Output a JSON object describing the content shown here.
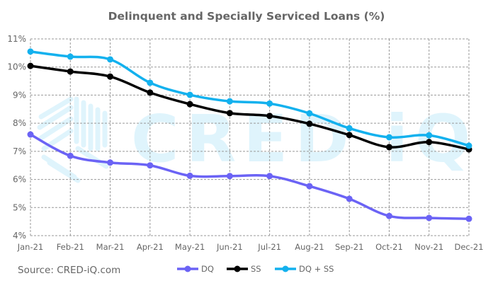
{
  "chart_data": {
    "type": "line",
    "title": "Delinquent and Specially Serviced Loans (%)",
    "xlabel": "",
    "ylabel": "",
    "ylim": [
      4,
      11
    ],
    "yticks": [
      "4%",
      "5%",
      "6%",
      "7%",
      "8%",
      "9%",
      "10%",
      "11%"
    ],
    "ytick_values": [
      4,
      5,
      6,
      7,
      8,
      9,
      10,
      11
    ],
    "grid": true,
    "legend_position": "bottom",
    "categories": [
      "Jan-21",
      "Feb-21",
      "Mar-21",
      "Apr-21",
      "May-21",
      "Jun-21",
      "Jul-21",
      "Aug-21",
      "Sep-21",
      "Oct-21",
      "Nov-21",
      "Dec-21"
    ],
    "series": [
      {
        "name": "DQ",
        "color": "#6b63f5",
        "values": [
          7.6,
          6.84,
          6.6,
          6.5,
          6.13,
          6.12,
          6.12,
          5.76,
          5.31,
          4.7,
          4.63,
          4.6
        ]
      },
      {
        "name": "SS",
        "color": "#000000",
        "values": [
          10.04,
          9.84,
          9.66,
          9.09,
          8.68,
          8.36,
          8.26,
          7.98,
          7.58,
          7.15,
          7.33,
          7.07
        ]
      },
      {
        "name": "DQ + SS",
        "color": "#13b1ee",
        "values": [
          10.55,
          10.37,
          10.27,
          9.44,
          9.01,
          8.78,
          8.7,
          8.35,
          7.82,
          7.5,
          7.57,
          7.2
        ]
      }
    ],
    "source": "Source:   CRED-iQ.com",
    "watermark": "CRED iQ"
  }
}
